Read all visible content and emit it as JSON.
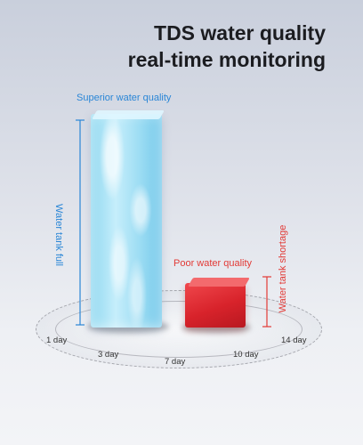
{
  "title": {
    "line1": "TDS water quality",
    "line2": "real-time monitoring"
  },
  "labels": {
    "superior": "Superior water quality",
    "tank_full": "Water tank full",
    "poor": "Poor water quality",
    "tank_shortage": "Water tank shortage"
  },
  "days": [
    "1 day",
    "3 day",
    "7 day",
    "10 day",
    "14 day"
  ],
  "colors": {
    "blue": "#2a86d6",
    "red": "#e23a36"
  }
}
